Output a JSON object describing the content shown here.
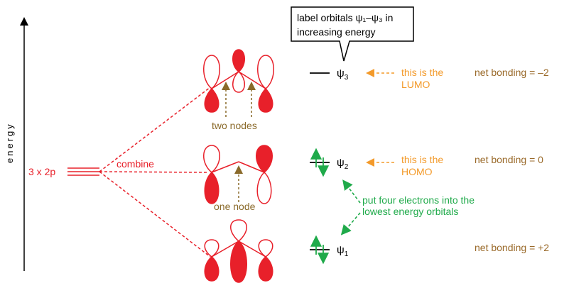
{
  "axis": {
    "label": "energy"
  },
  "atomic": {
    "label": "3 x 2p",
    "combine_label": "combine"
  },
  "callout": {
    "line1": "label orbitals ψ₁–ψ₃ in",
    "line2": "increasing energy"
  },
  "levels": [
    {
      "id": "psi1",
      "symbol": "ψ",
      "subscript": "1",
      "electrons": 2,
      "bonding": "net bonding = +2"
    },
    {
      "id": "psi2",
      "symbol": "ψ",
      "subscript": "2",
      "electrons": 2,
      "bonding": "net bonding = 0",
      "note_line1": "this is the",
      "note_line2": "HOMO"
    },
    {
      "id": "psi3",
      "symbol": "ψ",
      "subscript": "3",
      "electrons": 0,
      "bonding": "net bonding = –2",
      "note_line1": "this is the",
      "note_line2": "LUMO"
    }
  ],
  "node_labels": {
    "psi3": "two nodes",
    "psi2": "one node"
  },
  "electron_note": {
    "line1": "put four electrons into the",
    "line2": "lowest energy orbitals"
  },
  "colors": {
    "orbital": "#e8202a",
    "bonding_text": "#9a6a2a",
    "note": "#f39a2a",
    "electron": "#1faa4a",
    "node_arrow": "#8a6a2a",
    "line": "#000000"
  }
}
